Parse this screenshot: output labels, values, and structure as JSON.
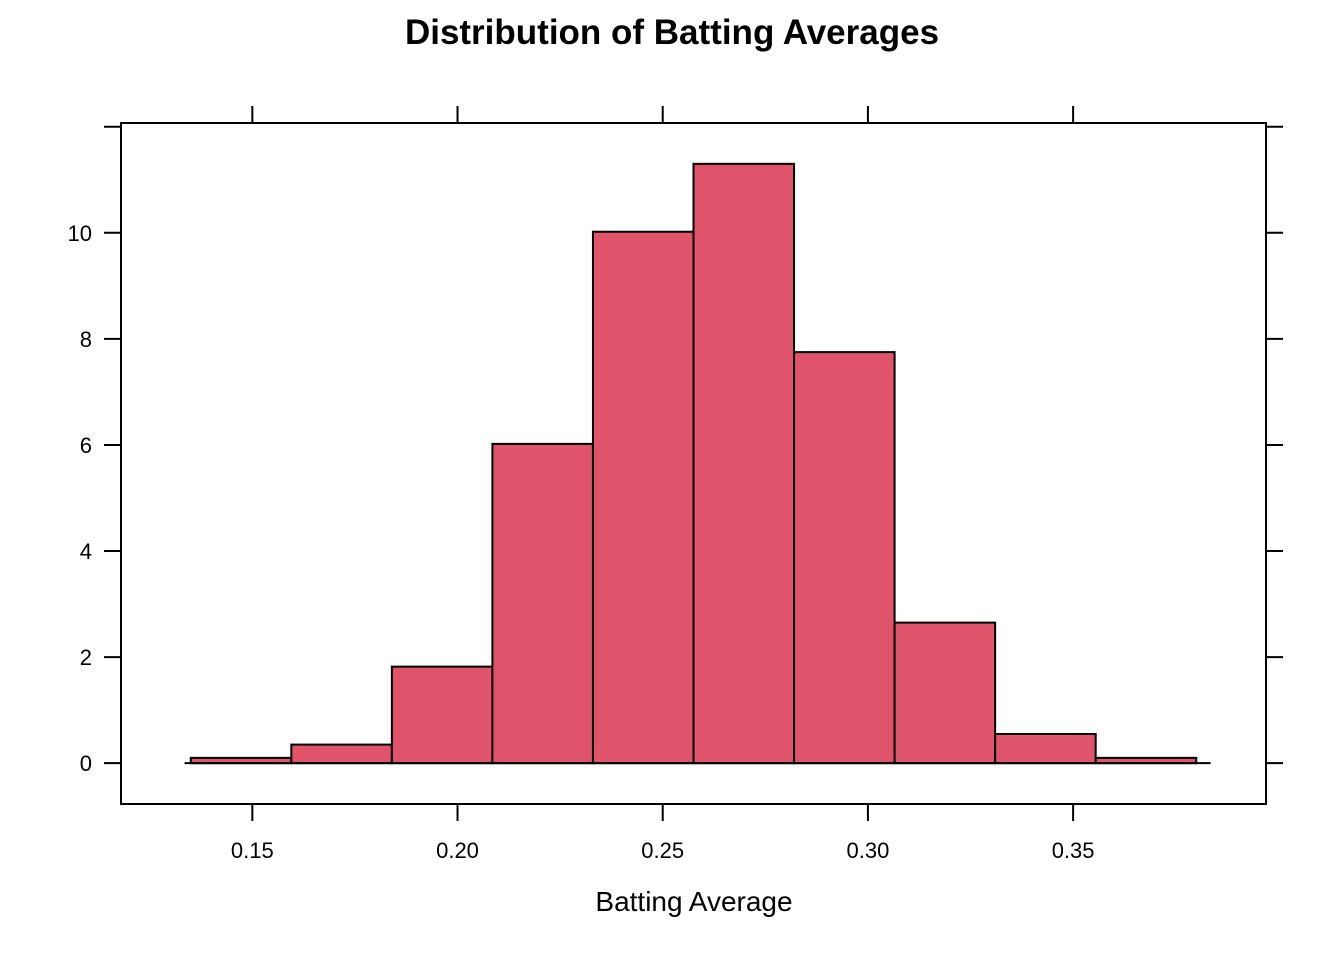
{
  "chart_data": {
    "type": "bar",
    "title": "Distribution of Batting Averages",
    "xlabel": "Batting Average",
    "ylabel": "",
    "bar_color": "#DF536B",
    "bins": [
      {
        "x0": 0.135,
        "x1": 0.1595,
        "value": 0.1
      },
      {
        "x0": 0.1595,
        "x1": 0.184,
        "value": 0.35
      },
      {
        "x0": 0.184,
        "x1": 0.2085,
        "value": 1.82
      },
      {
        "x0": 0.2085,
        "x1": 0.233,
        "value": 6.02
      },
      {
        "x0": 0.233,
        "x1": 0.2575,
        "value": 10.02
      },
      {
        "x0": 0.2575,
        "x1": 0.282,
        "value": 11.3
      },
      {
        "x0": 0.282,
        "x1": 0.3065,
        "value": 7.75
      },
      {
        "x0": 0.3065,
        "x1": 0.331,
        "value": 2.65
      },
      {
        "x0": 0.331,
        "x1": 0.3555,
        "value": 0.55
      },
      {
        "x0": 0.3555,
        "x1": 0.38,
        "value": 0.1
      }
    ],
    "xlim": [
      0.118,
      0.397
    ],
    "ylim": [
      -0.77,
      12.07
    ],
    "xticks": [
      {
        "value": 0.15,
        "label": "0.15"
      },
      {
        "value": 0.2,
        "label": "0.20"
      },
      {
        "value": 0.25,
        "label": "0.25"
      },
      {
        "value": 0.3,
        "label": "0.30"
      },
      {
        "value": 0.35,
        "label": "0.35"
      }
    ],
    "yticks": [
      {
        "value": 0,
        "label": "0"
      },
      {
        "value": 2,
        "label": "2"
      },
      {
        "value": 4,
        "label": "4"
      },
      {
        "value": 6,
        "label": "6"
      },
      {
        "value": 8,
        "label": "8"
      },
      {
        "value": 10,
        "label": "10"
      }
    ],
    "baseline_range": [
      0.1335,
      0.3835
    ],
    "grid": false,
    "legend": "none"
  }
}
